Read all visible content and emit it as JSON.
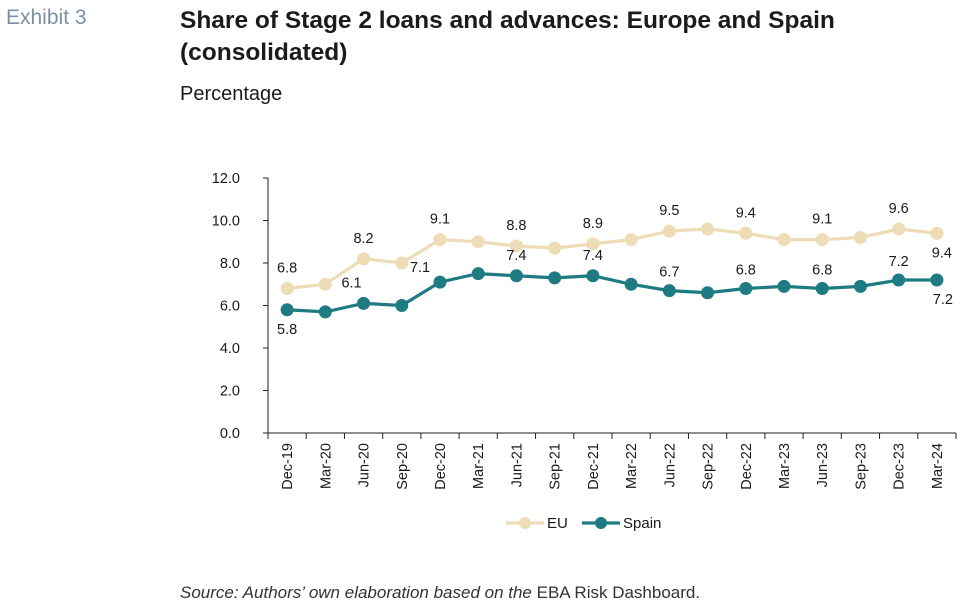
{
  "header": {
    "exhibit": "Exhibit 3",
    "title": "Share of Stage 2 loans and advances: Europe and Spain (consolidated)",
    "subtitle": "Percentage"
  },
  "source": {
    "prefix": "Source: Authors’ own elaboration based on the ",
    "suffix": "EBA Risk Dashboard."
  },
  "colors": {
    "eu": "#eedcb6",
    "spain": "#1e7b82"
  },
  "chart_data": {
    "type": "line",
    "categories": [
      "Dec-19",
      "Mar-20",
      "Jun-20",
      "Sep-20",
      "Dec-20",
      "Mar-21",
      "Jun-21",
      "Sep-21",
      "Dec-21",
      "Mar-22",
      "Jun-22",
      "Sep-22",
      "Dec-22",
      "Mar-23",
      "Jun-23",
      "Sep-23",
      "Dec-23",
      "Mar-24"
    ],
    "ylim": [
      0,
      12
    ],
    "yticks": [
      "0.0",
      "2.0",
      "4.0",
      "6.0",
      "8.0",
      "10.0",
      "12.0"
    ],
    "grid": false,
    "legend": "bottom",
    "series": [
      {
        "name": "EU",
        "values": [
          6.8,
          7.0,
          8.2,
          8.0,
          9.1,
          9.0,
          8.8,
          8.7,
          8.9,
          9.1,
          9.5,
          9.6,
          9.4,
          9.1,
          9.1,
          9.2,
          9.6,
          9.4
        ],
        "data_labels": [
          {
            "i": 0,
            "text": "6.8"
          },
          {
            "i": 2,
            "text": "8.2"
          },
          {
            "i": 4,
            "text": "9.1"
          },
          {
            "i": 6,
            "text": "8.8"
          },
          {
            "i": 8,
            "text": "8.9"
          },
          {
            "i": 10,
            "text": "9.5"
          },
          {
            "i": 12,
            "text": "9.4"
          },
          {
            "i": 14,
            "text": "9.1"
          },
          {
            "i": 16,
            "text": "9.6"
          },
          {
            "i": 17,
            "text": "9.4"
          }
        ]
      },
      {
        "name": "Spain",
        "values": [
          5.8,
          5.7,
          6.1,
          6.0,
          7.1,
          7.5,
          7.4,
          7.3,
          7.4,
          7.0,
          6.7,
          6.6,
          6.8,
          6.9,
          6.8,
          6.9,
          7.2,
          7.2
        ],
        "data_labels": [
          {
            "i": 0,
            "text": "5.8"
          },
          {
            "i": 2,
            "text": "6.1"
          },
          {
            "i": 4,
            "text": "7.1"
          },
          {
            "i": 6,
            "text": "7.4"
          },
          {
            "i": 8,
            "text": "7.4"
          },
          {
            "i": 10,
            "text": "6.7"
          },
          {
            "i": 12,
            "text": "6.8"
          },
          {
            "i": 14,
            "text": "6.8"
          },
          {
            "i": 16,
            "text": "7.2"
          },
          {
            "i": 17,
            "text": "7.2"
          }
        ]
      }
    ]
  }
}
